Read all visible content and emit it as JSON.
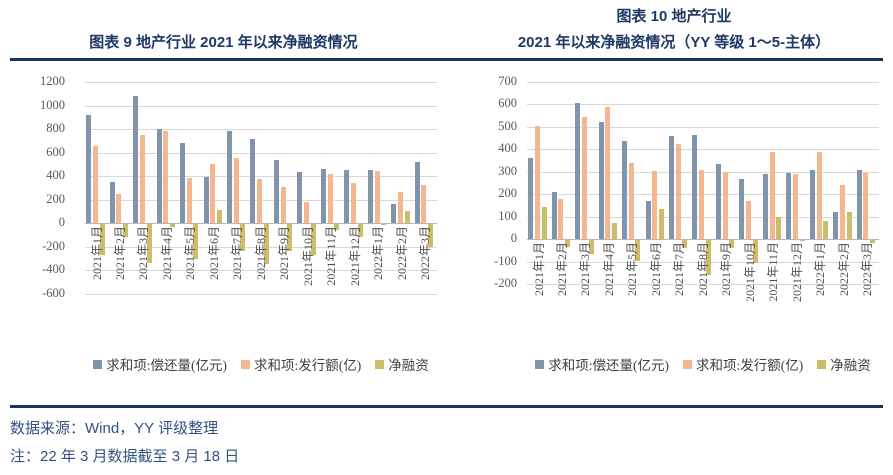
{
  "chart_data": [
    {
      "type": "bar",
      "title": "图表 9 地产行业 2021 年以来净融资情况",
      "title_lines": [
        "图表 9 地产行业 2021 年以来净融资情况"
      ],
      "categories": [
        "2021年1月",
        "2021年2月",
        "2021年3月",
        "2021年4月",
        "2021年5月",
        "2021年6月",
        "2021年7月",
        "2021年8月",
        "2021年9月",
        "2021年10月",
        "2021年11月",
        "2021年12月",
        "2022年1月",
        "2022年2月",
        "2022年3月"
      ],
      "series": [
        {
          "name": "求和项:偿还量(亿元)",
          "color": "#8094ac",
          "values": [
            920,
            355,
            1080,
            800,
            680,
            390,
            780,
            715,
            540,
            440,
            465,
            450,
            450,
            165,
            520
          ]
        },
        {
          "name": "求和项:发行额(亿)",
          "color": "#f5b78f",
          "values": [
            660,
            250,
            750,
            780,
            385,
            505,
            555,
            375,
            310,
            180,
            420,
            340,
            445,
            270,
            325
          ]
        },
        {
          "name": "净融资",
          "color": "#ccbd6b",
          "values": [
            -260,
            -105,
            -330,
            -20,
            -295,
            115,
            -225,
            -340,
            -230,
            -260,
            -45,
            -110,
            -5,
            105,
            -195
          ]
        }
      ],
      "ylim": [
        -600,
        1200
      ],
      "ytick_step": 200,
      "grid": true,
      "legend_position": "bottom"
    },
    {
      "type": "bar",
      "title": "图表 10 地产行业 2021 年以来净融资情况（YY 等级 1～5-主体）",
      "title_lines": [
        "图表 10 地产行业",
        "2021 年以来净融资情况（YY 等级 1～5-主体）"
      ],
      "categories": [
        "2021年1月",
        "2021年2月",
        "2021年3月",
        "2021年4月",
        "2021年5月",
        "2021年6月",
        "2021年7月",
        "2021年8月",
        "2021年9月",
        "2021年10月",
        "2021年11月",
        "2021年12月",
        "2022年1月",
        "2022年2月",
        "2022年3月"
      ],
      "series": [
        {
          "name": "求和项:偿还量(亿元)",
          "color": "#8094ac",
          "values": [
            360,
            210,
            605,
            520,
            435,
            170,
            460,
            465,
            335,
            270,
            290,
            295,
            310,
            120,
            310
          ]
        },
        {
          "name": "求和项:发行额(亿)",
          "color": "#f5b78f",
          "values": [
            505,
            180,
            545,
            590,
            340,
            305,
            425,
            310,
            300,
            170,
            390,
            290,
            390,
            240,
            295
          ]
        },
        {
          "name": "净融资",
          "color": "#ccbd6b",
          "values": [
            145,
            -30,
            -60,
            70,
            -95,
            135,
            -35,
            -155,
            -35,
            -100,
            100,
            -5,
            80,
            120,
            -15
          ]
        }
      ],
      "ylim": [
        -200,
        700
      ],
      "ytick_step": 100,
      "grid": true,
      "legend_position": "bottom"
    }
  ],
  "footer": {
    "source": "数据来源：Wind，YY 评级整理",
    "note": "注：22 年 3 月数据截至 3 月 18 日"
  },
  "colors": {
    "title_text": "#1f3864",
    "divider": "#17365d",
    "footer_text": "#335181",
    "axis_text": "#595959",
    "gridline": "#d9d9d9",
    "repayment_blue": "#8094ac",
    "issuance_orange": "#f5b78f",
    "net_khaki": "#ccbd6b"
  }
}
